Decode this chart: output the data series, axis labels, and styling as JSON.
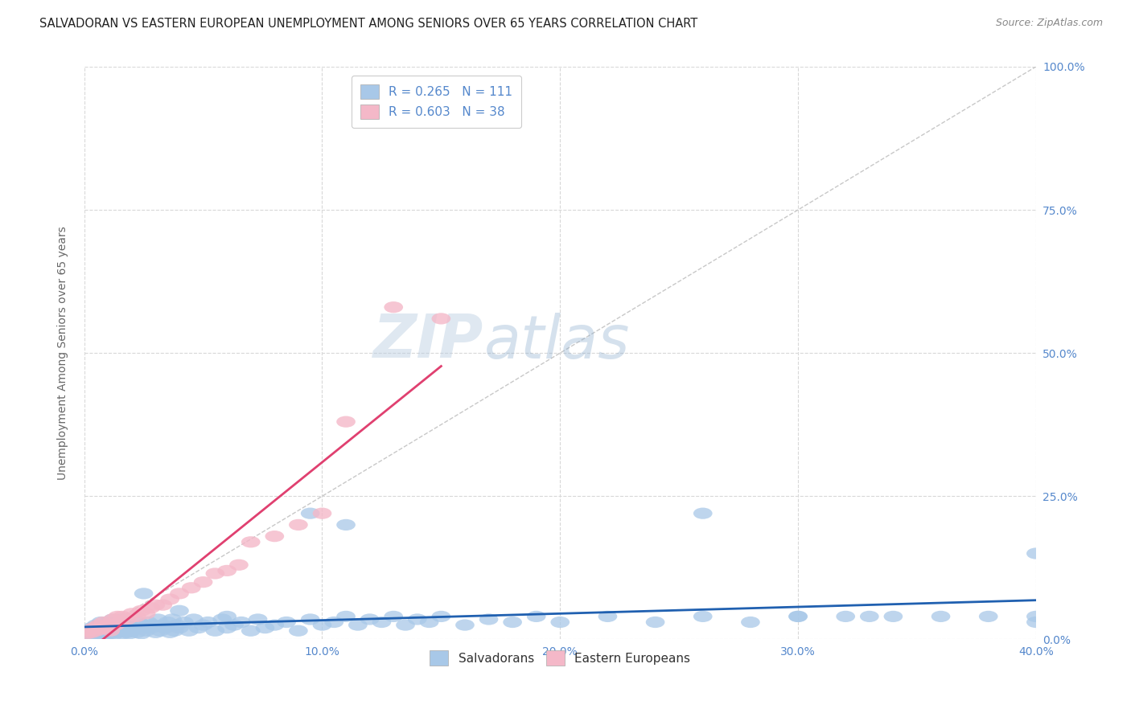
{
  "title": "SALVADORAN VS EASTERN EUROPEAN UNEMPLOYMENT AMONG SENIORS OVER 65 YEARS CORRELATION CHART",
  "source": "Source: ZipAtlas.com",
  "ylabel": "Unemployment Among Seniors over 65 years",
  "xlim": [
    0.0,
    0.4
  ],
  "ylim": [
    0.0,
    1.0
  ],
  "legend_labels": [
    "Salvadorans",
    "Eastern Europeans"
  ],
  "R_salvadoran": 0.265,
  "N_salvadoran": 111,
  "R_eastern": 0.603,
  "N_eastern": 38,
  "color_salvadoran": "#a8c8e8",
  "color_eastern": "#f4b8c8",
  "color_trendline_salvadoran": "#2060b0",
  "color_trendline_eastern": "#e04070",
  "color_diagonal": "#c8c8c8",
  "background_color": "#ffffff",
  "grid_color": "#d8d8d8",
  "tick_color": "#5588cc",
  "watermark_color": "#c8ddf0",
  "watermark": "ZIPatlas",
  "sal_x": [
    0.001,
    0.002,
    0.003,
    0.003,
    0.004,
    0.004,
    0.005,
    0.005,
    0.006,
    0.006,
    0.007,
    0.007,
    0.008,
    0.008,
    0.009,
    0.009,
    0.01,
    0.01,
    0.011,
    0.011,
    0.012,
    0.012,
    0.013,
    0.013,
    0.014,
    0.014,
    0.015,
    0.015,
    0.016,
    0.016,
    0.017,
    0.017,
    0.018,
    0.018,
    0.019,
    0.019,
    0.02,
    0.021,
    0.022,
    0.023,
    0.024,
    0.025,
    0.026,
    0.027,
    0.028,
    0.029,
    0.03,
    0.031,
    0.032,
    0.033,
    0.034,
    0.035,
    0.036,
    0.037,
    0.038,
    0.039,
    0.04,
    0.042,
    0.044,
    0.046,
    0.048,
    0.05,
    0.052,
    0.055,
    0.058,
    0.06,
    0.063,
    0.066,
    0.07,
    0.073,
    0.076,
    0.08,
    0.085,
    0.09,
    0.095,
    0.1,
    0.105,
    0.11,
    0.115,
    0.12,
    0.125,
    0.13,
    0.135,
    0.14,
    0.145,
    0.15,
    0.16,
    0.17,
    0.18,
    0.19,
    0.2,
    0.22,
    0.24,
    0.26,
    0.28,
    0.3,
    0.32,
    0.34,
    0.36,
    0.38,
    0.4,
    0.4,
    0.4,
    0.095,
    0.11,
    0.26,
    0.3,
    0.33,
    0.06,
    0.04,
    0.025
  ],
  "sal_y": [
    0.01,
    0.015,
    0.008,
    0.02,
    0.012,
    0.018,
    0.01,
    0.025,
    0.015,
    0.02,
    0.01,
    0.03,
    0.015,
    0.025,
    0.008,
    0.02,
    0.012,
    0.03,
    0.01,
    0.025,
    0.015,
    0.035,
    0.01,
    0.02,
    0.012,
    0.03,
    0.015,
    0.025,
    0.01,
    0.035,
    0.015,
    0.02,
    0.012,
    0.03,
    0.01,
    0.025,
    0.015,
    0.02,
    0.012,
    0.03,
    0.01,
    0.025,
    0.015,
    0.03,
    0.02,
    0.025,
    0.012,
    0.035,
    0.015,
    0.025,
    0.02,
    0.03,
    0.012,
    0.035,
    0.015,
    0.025,
    0.02,
    0.03,
    0.015,
    0.035,
    0.02,
    0.025,
    0.03,
    0.015,
    0.035,
    0.02,
    0.025,
    0.03,
    0.015,
    0.035,
    0.02,
    0.025,
    0.03,
    0.015,
    0.035,
    0.025,
    0.03,
    0.04,
    0.025,
    0.035,
    0.03,
    0.04,
    0.025,
    0.035,
    0.03,
    0.04,
    0.025,
    0.035,
    0.03,
    0.04,
    0.03,
    0.04,
    0.03,
    0.04,
    0.03,
    0.04,
    0.04,
    0.04,
    0.04,
    0.04,
    0.15,
    0.03,
    0.04,
    0.22,
    0.2,
    0.22,
    0.04,
    0.04,
    0.04,
    0.05,
    0.08
  ],
  "eas_x": [
    0.001,
    0.002,
    0.003,
    0.004,
    0.005,
    0.006,
    0.007,
    0.008,
    0.009,
    0.01,
    0.011,
    0.012,
    0.013,
    0.014,
    0.015,
    0.016,
    0.018,
    0.02,
    0.022,
    0.024,
    0.026,
    0.028,
    0.03,
    0.033,
    0.036,
    0.04,
    0.045,
    0.05,
    0.055,
    0.06,
    0.065,
    0.07,
    0.08,
    0.09,
    0.1,
    0.11,
    0.13,
    0.15
  ],
  "eas_y": [
    0.01,
    0.015,
    0.012,
    0.02,
    0.015,
    0.025,
    0.018,
    0.03,
    0.02,
    0.025,
    0.015,
    0.035,
    0.025,
    0.04,
    0.03,
    0.04,
    0.035,
    0.045,
    0.04,
    0.05,
    0.045,
    0.055,
    0.06,
    0.06,
    0.07,
    0.08,
    0.09,
    0.1,
    0.115,
    0.12,
    0.13,
    0.17,
    0.18,
    0.2,
    0.22,
    0.38,
    0.58,
    0.56
  ]
}
